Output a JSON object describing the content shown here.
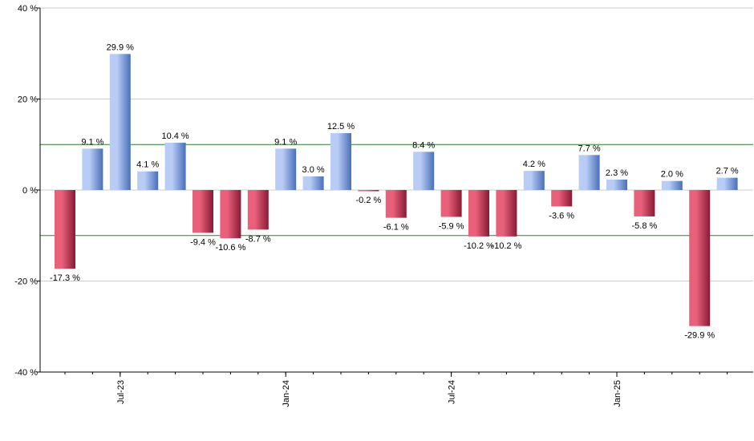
{
  "chart_data": {
    "type": "bar",
    "title": "",
    "xlabel": "",
    "ylabel": "",
    "ylim": [
      -40,
      40
    ],
    "y_ticks": [
      {
        "value": 40,
        "label": "40 %"
      },
      {
        "value": 20,
        "label": "20 %"
      },
      {
        "value": 0,
        "label": "0 %"
      },
      {
        "value": -20,
        "label": "-20 %"
      },
      {
        "value": -40,
        "label": "-40 %"
      }
    ],
    "x_ticks": [
      {
        "index": 2,
        "label": "Jul-23"
      },
      {
        "index": 8,
        "label": "Jan-24"
      },
      {
        "index": 14,
        "label": "Jul-24"
      },
      {
        "index": 20,
        "label": "Jan-25"
      }
    ],
    "reference_lines": [
      10,
      -10
    ],
    "grid": true,
    "values": [
      -17.3,
      9.1,
      29.9,
      4.1,
      10.4,
      -9.4,
      -10.6,
      -8.7,
      9.1,
      3.0,
      12.5,
      -0.2,
      -6.1,
      8.4,
      -5.9,
      -10.2,
      -10.2,
      4.2,
      -3.6,
      7.7,
      2.3,
      -5.8,
      2.0,
      -29.9,
      2.7
    ],
    "labels": [
      "-17.3 %",
      "9.1 %",
      "29.9 %",
      "4.1 %",
      "10.4 %",
      "-9.4 %",
      "-10.6 %",
      "-8.7 %",
      "9.1 %",
      "3.0 %",
      "12.5 %",
      "-0.2 %",
      "-6.1 %",
      "8.4 %",
      "-5.9 %",
      "-10.2 %",
      "-10.2 %",
      "4.2 %",
      "-3.6 %",
      "7.7 %",
      "2.3 %",
      "-5.8 %",
      "2.0 %",
      "-29.9 %",
      "2.7 %"
    ],
    "colors": {
      "positive_light": "#b8ccf5",
      "positive_dark": "#4a6fb8",
      "negative_light": "#e8607a",
      "negative_dark": "#8a1a34",
      "reference_line": "#2e7d2e",
      "grid": "#cccccc",
      "axis": "#000000"
    }
  }
}
